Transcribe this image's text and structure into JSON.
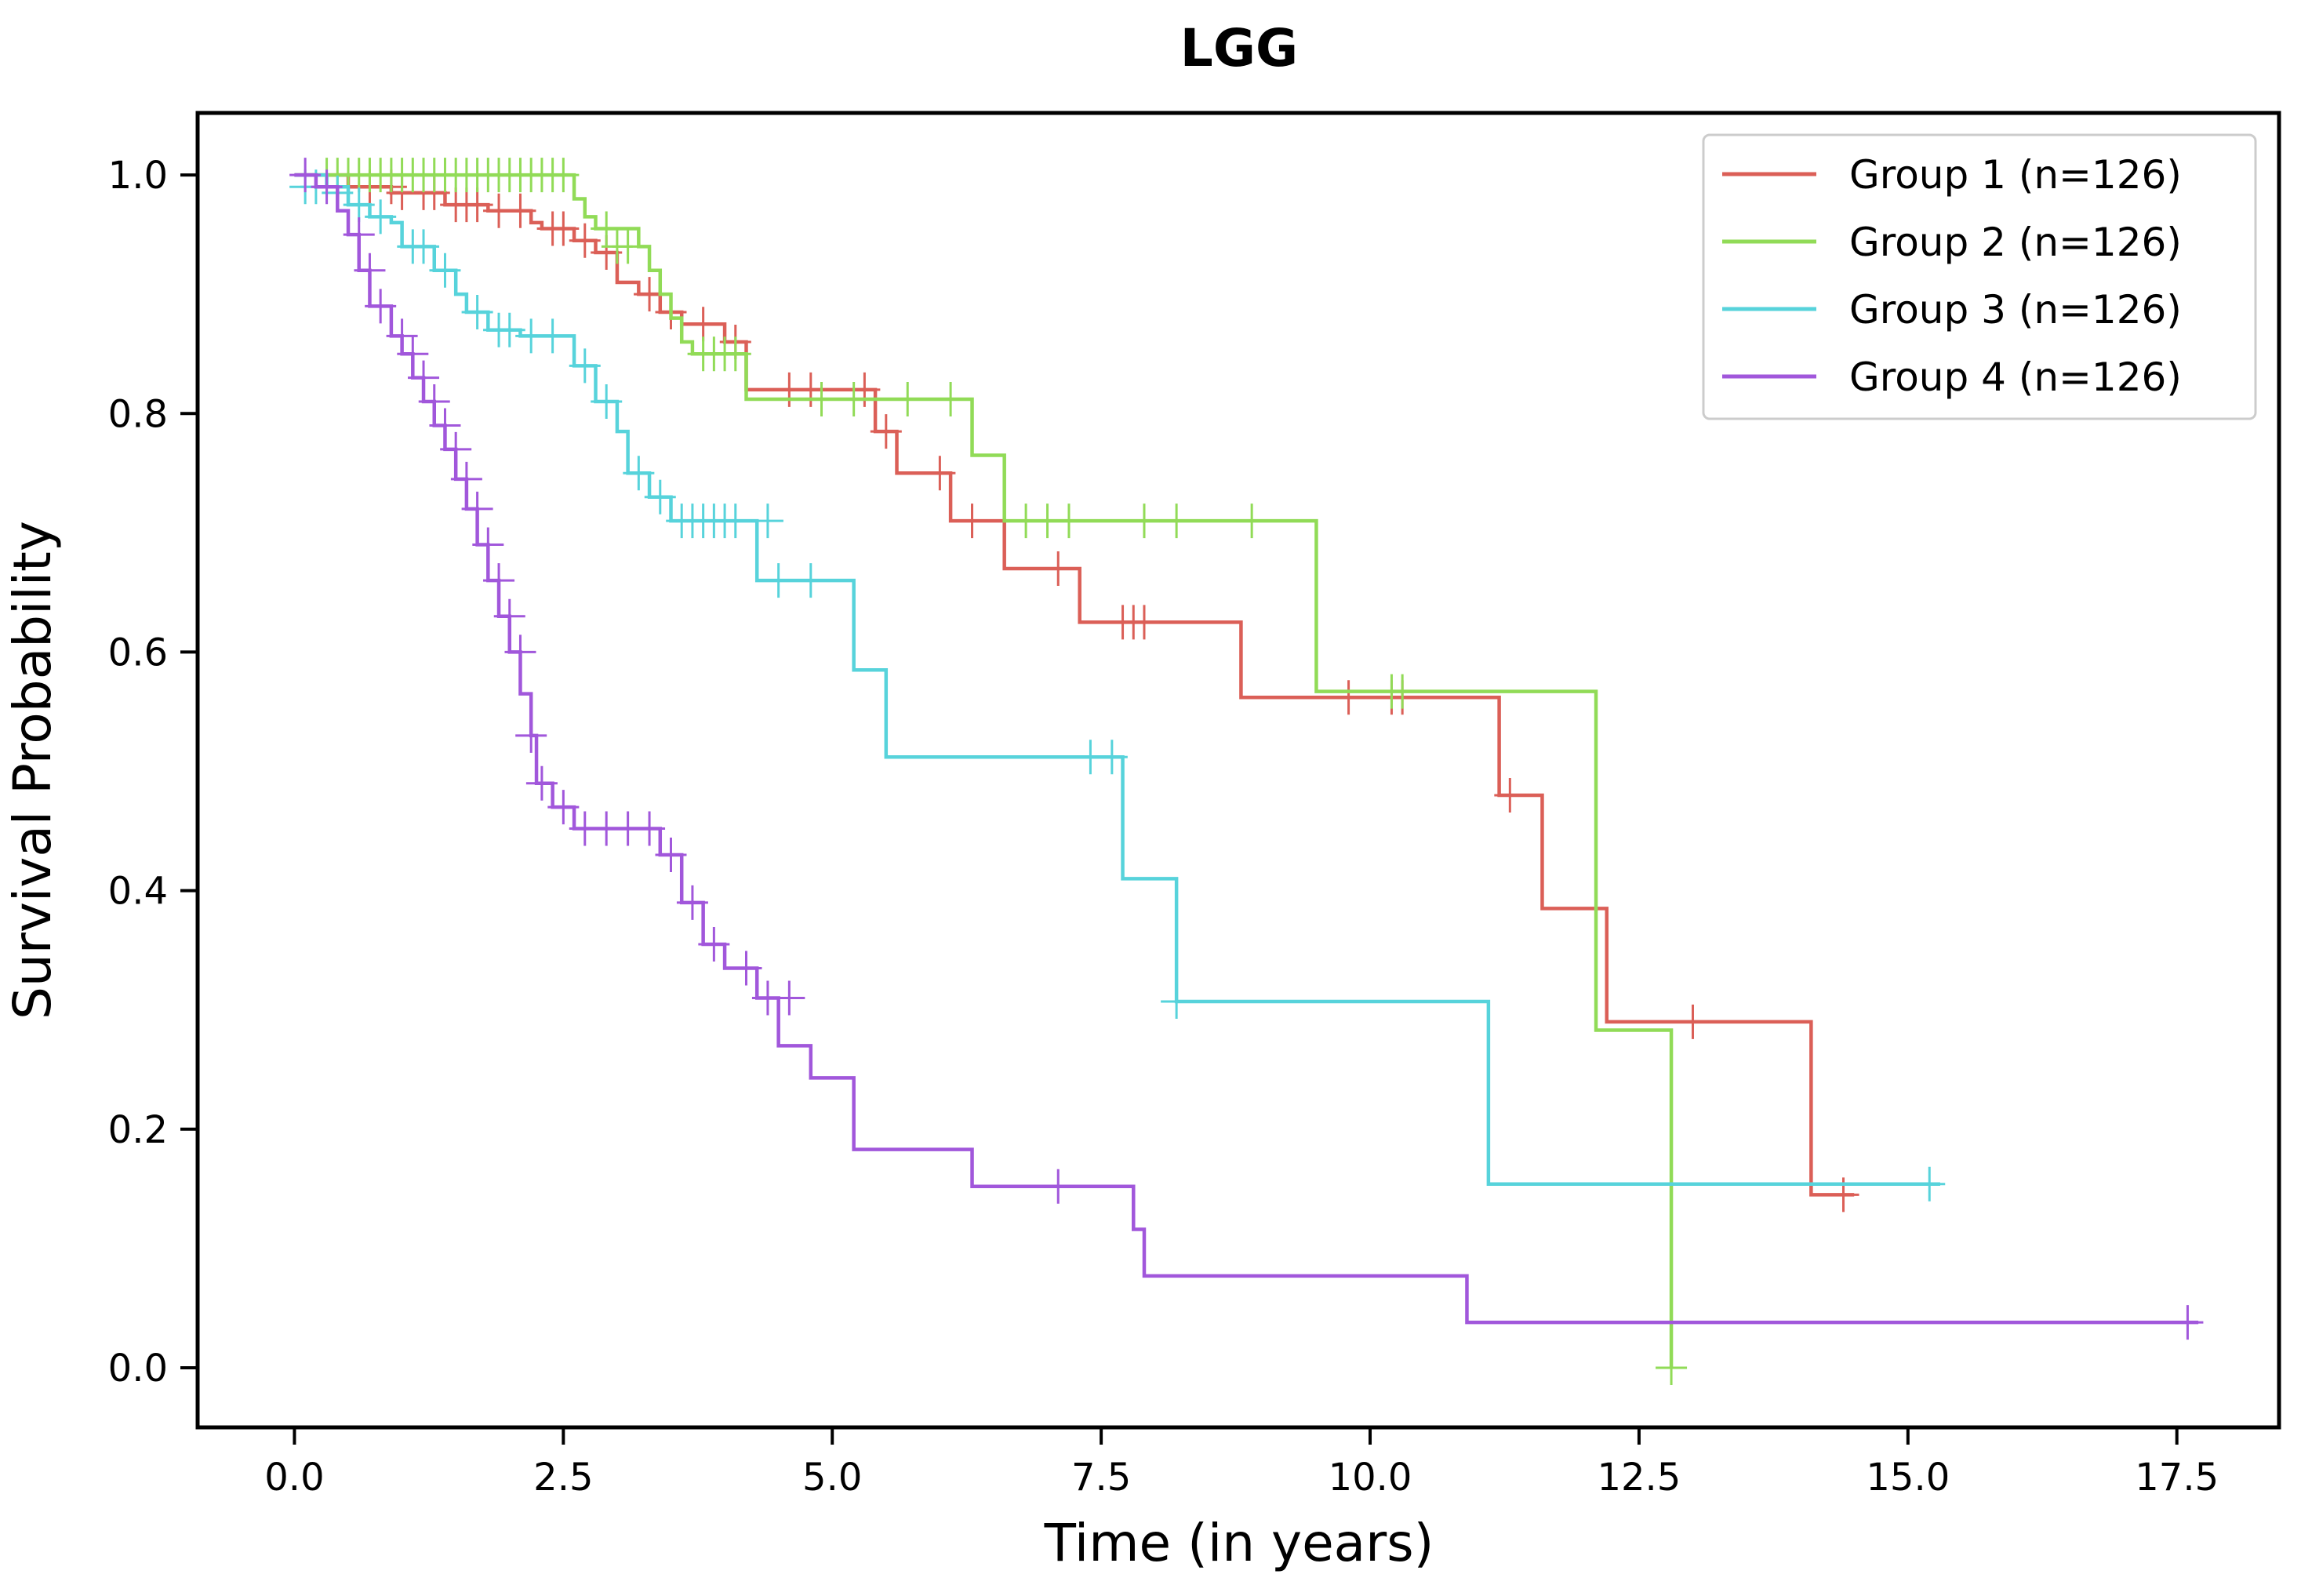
{
  "chart_data": {
    "type": "line",
    "title": "LGG",
    "xlabel": "Time (in years)",
    "ylabel": "Survival Probability",
    "xlim": [
      -0.9,
      18.45
    ],
    "ylim": [
      -0.05,
      1.052
    ],
    "xticks": [
      0.0,
      2.5,
      5.0,
      7.5,
      10.0,
      12.5,
      15.0,
      17.5
    ],
    "xtick_labels": [
      "0.0",
      "2.5",
      "5.0",
      "7.5",
      "10.0",
      "12.5",
      "15.0",
      "17.5"
    ],
    "yticks": [
      0.0,
      0.2,
      0.4,
      0.6,
      0.8,
      1.0
    ],
    "ytick_labels": [
      "0.0",
      "0.2",
      "0.4",
      "0.6",
      "0.8",
      "1.0"
    ],
    "grid": false,
    "legend_position": "top-right",
    "series": [
      {
        "name": "Group 1 (n=126)",
        "color": "#db5f57",
        "steps": [
          [
            0,
            1.0
          ],
          [
            0.5,
            0.99
          ],
          [
            0.9,
            0.985
          ],
          [
            1.4,
            0.975
          ],
          [
            1.8,
            0.97
          ],
          [
            2.2,
            0.96
          ],
          [
            2.3,
            0.955
          ],
          [
            2.6,
            0.945
          ],
          [
            2.8,
            0.935
          ],
          [
            3.0,
            0.91
          ],
          [
            3.2,
            0.9
          ],
          [
            3.4,
            0.885
          ],
          [
            3.6,
            0.875
          ],
          [
            4.0,
            0.86
          ],
          [
            4.2,
            0.82
          ],
          [
            5.4,
            0.785
          ],
          [
            5.6,
            0.75
          ],
          [
            6.1,
            0.71
          ],
          [
            6.6,
            0.67
          ],
          [
            7.3,
            0.625
          ],
          [
            8.8,
            0.562
          ],
          [
            11.2,
            0.48
          ],
          [
            11.6,
            0.385
          ],
          [
            12.2,
            0.29
          ],
          [
            14.1,
            0.145
          ],
          [
            14.5,
            0.145
          ]
        ],
        "censors": [
          [
            0.7,
            0.99
          ],
          [
            0.9,
            0.99
          ],
          [
            1.0,
            0.985
          ],
          [
            1.2,
            0.985
          ],
          [
            1.3,
            0.985
          ],
          [
            1.5,
            0.975
          ],
          [
            1.6,
            0.975
          ],
          [
            1.7,
            0.975
          ],
          [
            1.9,
            0.97
          ],
          [
            2.1,
            0.97
          ],
          [
            2.4,
            0.955
          ],
          [
            2.5,
            0.955
          ],
          [
            2.7,
            0.945
          ],
          [
            2.9,
            0.935
          ],
          [
            3.3,
            0.9
          ],
          [
            3.5,
            0.885
          ],
          [
            3.8,
            0.875
          ],
          [
            4.1,
            0.86
          ],
          [
            4.6,
            0.82
          ],
          [
            4.8,
            0.82
          ],
          [
            5.3,
            0.82
          ],
          [
            5.5,
            0.785
          ],
          [
            6.0,
            0.75
          ],
          [
            6.3,
            0.71
          ],
          [
            7.1,
            0.67
          ],
          [
            7.7,
            0.625
          ],
          [
            7.8,
            0.625
          ],
          [
            7.9,
            0.625
          ],
          [
            9.8,
            0.562
          ],
          [
            10.2,
            0.562
          ],
          [
            10.3,
            0.562
          ],
          [
            11.3,
            0.48
          ],
          [
            13.0,
            0.29
          ],
          [
            14.4,
            0.145
          ]
        ]
      },
      {
        "name": "Group 2 (n=126)",
        "color": "#91db57",
        "steps": [
          [
            0,
            1.0
          ],
          [
            2.6,
            0.98
          ],
          [
            2.7,
            0.965
          ],
          [
            2.8,
            0.955
          ],
          [
            3.2,
            0.94
          ],
          [
            3.3,
            0.92
          ],
          [
            3.4,
            0.9
          ],
          [
            3.5,
            0.88
          ],
          [
            3.6,
            0.86
          ],
          [
            3.7,
            0.85
          ],
          [
            4.2,
            0.812
          ],
          [
            6.3,
            0.765
          ],
          [
            6.6,
            0.71
          ],
          [
            9.5,
            0.567
          ],
          [
            12.1,
            0.283
          ],
          [
            12.8,
            0.0
          ]
        ],
        "censors": [
          [
            0.3,
            1.0
          ],
          [
            0.4,
            1.0
          ],
          [
            0.5,
            1.0
          ],
          [
            0.6,
            1.0
          ],
          [
            0.7,
            1.0
          ],
          [
            0.8,
            1.0
          ],
          [
            0.9,
            1.0
          ],
          [
            1.0,
            1.0
          ],
          [
            1.1,
            1.0
          ],
          [
            1.2,
            1.0
          ],
          [
            1.3,
            1.0
          ],
          [
            1.4,
            1.0
          ],
          [
            1.5,
            1.0
          ],
          [
            1.6,
            1.0
          ],
          [
            1.7,
            1.0
          ],
          [
            1.8,
            1.0
          ],
          [
            1.9,
            1.0
          ],
          [
            2.0,
            1.0
          ],
          [
            2.1,
            1.0
          ],
          [
            2.2,
            1.0
          ],
          [
            2.3,
            1.0
          ],
          [
            2.4,
            1.0
          ],
          [
            2.5,
            1.0
          ],
          [
            2.9,
            0.955
          ],
          [
            3.0,
            0.94
          ],
          [
            3.1,
            0.94
          ],
          [
            3.8,
            0.85
          ],
          [
            3.9,
            0.85
          ],
          [
            4.0,
            0.85
          ],
          [
            4.1,
            0.85
          ],
          [
            4.9,
            0.812
          ],
          [
            5.2,
            0.812
          ],
          [
            5.7,
            0.812
          ],
          [
            6.1,
            0.812
          ],
          [
            6.8,
            0.71
          ],
          [
            7.0,
            0.71
          ],
          [
            7.2,
            0.71
          ],
          [
            7.9,
            0.71
          ],
          [
            8.2,
            0.71
          ],
          [
            8.9,
            0.71
          ],
          [
            10.2,
            0.567
          ],
          [
            10.3,
            0.567
          ],
          [
            12.8,
            0.0
          ]
        ]
      },
      {
        "name": "Group 3 (n=126)",
        "color": "#57d3db",
        "steps": [
          [
            0,
            1.0
          ],
          [
            0.3,
            0.99
          ],
          [
            0.5,
            0.975
          ],
          [
            0.7,
            0.965
          ],
          [
            0.9,
            0.96
          ],
          [
            1.0,
            0.94
          ],
          [
            1.3,
            0.92
          ],
          [
            1.5,
            0.9
          ],
          [
            1.6,
            0.885
          ],
          [
            1.8,
            0.87
          ],
          [
            2.1,
            0.865
          ],
          [
            2.6,
            0.84
          ],
          [
            2.8,
            0.81
          ],
          [
            3.0,
            0.785
          ],
          [
            3.1,
            0.75
          ],
          [
            3.3,
            0.73
          ],
          [
            3.5,
            0.71
          ],
          [
            4.3,
            0.66
          ],
          [
            5.2,
            0.585
          ],
          [
            5.5,
            0.512
          ],
          [
            7.7,
            0.41
          ],
          [
            8.2,
            0.307
          ],
          [
            11.1,
            0.154
          ],
          [
            15.3,
            0.154
          ]
        ],
        "censors": [
          [
            0.1,
            0.99
          ],
          [
            0.2,
            0.99
          ],
          [
            0.4,
            0.985
          ],
          [
            0.6,
            0.975
          ],
          [
            0.8,
            0.965
          ],
          [
            1.1,
            0.94
          ],
          [
            1.2,
            0.94
          ],
          [
            1.4,
            0.92
          ],
          [
            1.7,
            0.885
          ],
          [
            1.9,
            0.87
          ],
          [
            2.0,
            0.87
          ],
          [
            2.2,
            0.865
          ],
          [
            2.4,
            0.865
          ],
          [
            2.7,
            0.84
          ],
          [
            2.9,
            0.81
          ],
          [
            3.2,
            0.75
          ],
          [
            3.4,
            0.73
          ],
          [
            3.6,
            0.71
          ],
          [
            3.7,
            0.71
          ],
          [
            3.8,
            0.71
          ],
          [
            3.9,
            0.71
          ],
          [
            4.0,
            0.71
          ],
          [
            4.1,
            0.71
          ],
          [
            4.4,
            0.71
          ],
          [
            4.5,
            0.66
          ],
          [
            4.8,
            0.66
          ],
          [
            7.4,
            0.512
          ],
          [
            7.6,
            0.512
          ],
          [
            8.2,
            0.307
          ],
          [
            15.2,
            0.154
          ]
        ]
      },
      {
        "name": "Group 4 (n=126)",
        "color": "#a157db",
        "steps": [
          [
            0,
            1.0
          ],
          [
            0.2,
            0.99
          ],
          [
            0.4,
            0.97
          ],
          [
            0.5,
            0.95
          ],
          [
            0.6,
            0.92
          ],
          [
            0.7,
            0.89
          ],
          [
            0.9,
            0.865
          ],
          [
            1.0,
            0.85
          ],
          [
            1.1,
            0.83
          ],
          [
            1.2,
            0.81
          ],
          [
            1.3,
            0.79
          ],
          [
            1.4,
            0.77
          ],
          [
            1.5,
            0.745
          ],
          [
            1.6,
            0.72
          ],
          [
            1.7,
            0.69
          ],
          [
            1.8,
            0.66
          ],
          [
            1.9,
            0.63
          ],
          [
            2.0,
            0.6
          ],
          [
            2.1,
            0.565
          ],
          [
            2.2,
            0.53
          ],
          [
            2.25,
            0.49
          ],
          [
            2.4,
            0.47
          ],
          [
            2.6,
            0.452
          ],
          [
            3.4,
            0.43
          ],
          [
            3.6,
            0.39
          ],
          [
            3.8,
            0.355
          ],
          [
            4.0,
            0.335
          ],
          [
            4.3,
            0.31
          ],
          [
            4.5,
            0.27
          ],
          [
            4.8,
            0.243
          ],
          [
            5.2,
            0.183
          ],
          [
            6.3,
            0.152
          ],
          [
            7.8,
            0.116
          ],
          [
            7.9,
            0.077
          ],
          [
            10.9,
            0.038
          ],
          [
            17.7,
            0.038
          ]
        ],
        "censors": [
          [
            0.1,
            1.0
          ],
          [
            0.3,
            0.99
          ],
          [
            0.6,
            0.95
          ],
          [
            0.7,
            0.92
          ],
          [
            0.8,
            0.89
          ],
          [
            1.0,
            0.865
          ],
          [
            1.1,
            0.85
          ],
          [
            1.2,
            0.83
          ],
          [
            1.3,
            0.81
          ],
          [
            1.4,
            0.79
          ],
          [
            1.5,
            0.77
          ],
          [
            1.6,
            0.745
          ],
          [
            1.7,
            0.72
          ],
          [
            1.8,
            0.69
          ],
          [
            1.9,
            0.66
          ],
          [
            2.0,
            0.63
          ],
          [
            2.1,
            0.6
          ],
          [
            2.2,
            0.53
          ],
          [
            2.3,
            0.49
          ],
          [
            2.5,
            0.47
          ],
          [
            2.7,
            0.452
          ],
          [
            2.9,
            0.452
          ],
          [
            3.1,
            0.452
          ],
          [
            3.3,
            0.452
          ],
          [
            3.5,
            0.43
          ],
          [
            3.7,
            0.39
          ],
          [
            3.9,
            0.355
          ],
          [
            4.2,
            0.335
          ],
          [
            4.4,
            0.31
          ],
          [
            4.6,
            0.31
          ],
          [
            7.1,
            0.152
          ],
          [
            17.6,
            0.038
          ]
        ]
      }
    ]
  }
}
